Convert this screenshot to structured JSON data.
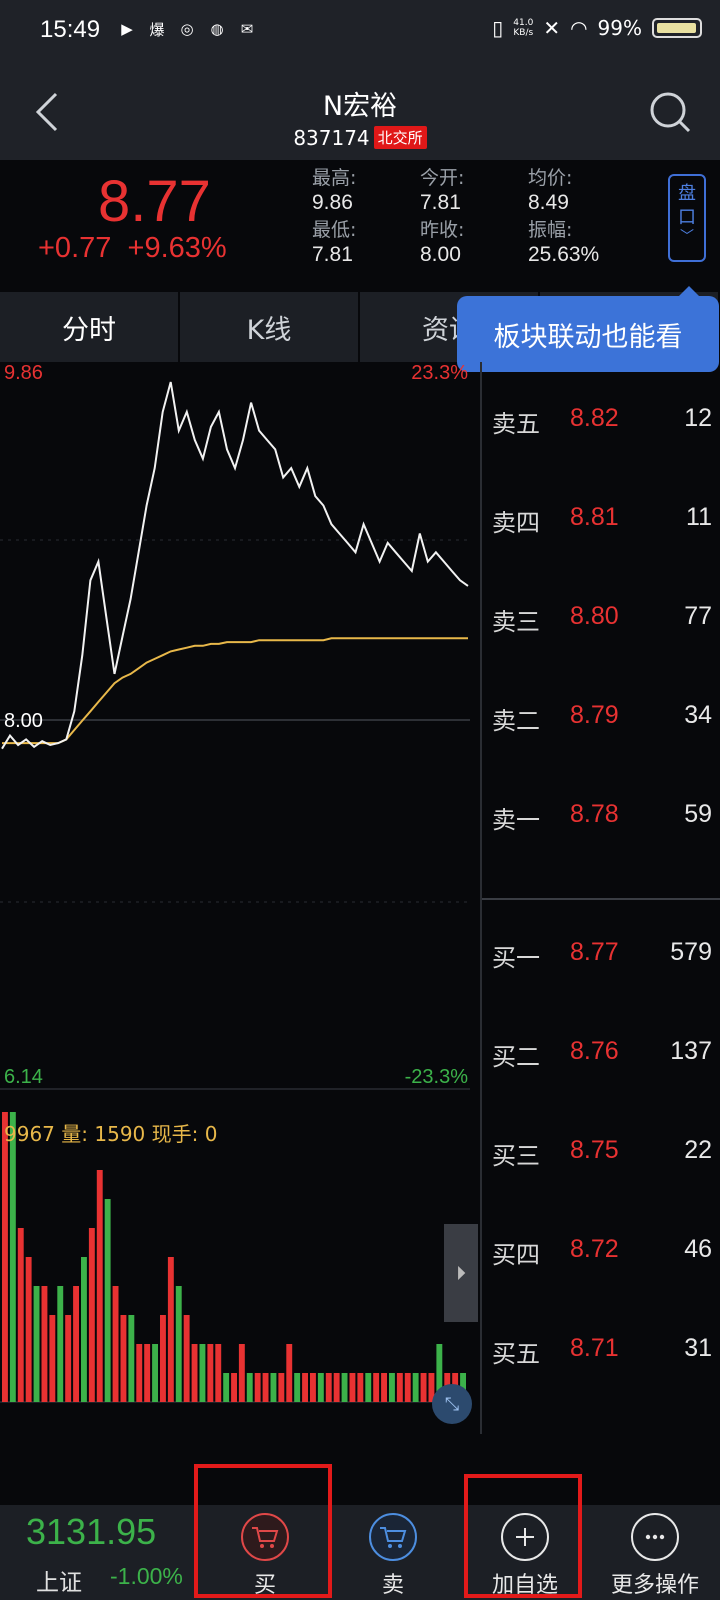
{
  "status_bar": {
    "time": "15:49",
    "net_speed_top": "41.0",
    "net_speed_bottom": "KB/s",
    "battery": "99%"
  },
  "header": {
    "title": "N宏裕",
    "code": "837174",
    "exchange": "北交所"
  },
  "quote": {
    "price": "8.77",
    "change": "+0.77",
    "change_pct": "+9.63%",
    "stats": [
      {
        "label": "最高:",
        "value": "9.86"
      },
      {
        "label": "今开:",
        "value": "7.81"
      },
      {
        "label": "均价:",
        "value": "8.49"
      },
      {
        "label": "最低:",
        "value": "7.81"
      },
      {
        "label": "昨收:",
        "value": "8.00"
      },
      {
        "label": "振幅:",
        "value": "25.63%"
      }
    ],
    "pankou_label": "盘口"
  },
  "tabs": [
    "分时",
    "K线",
    "资讯",
    ""
  ],
  "tooltip": "板块联动也能看",
  "chart": {
    "top_price": "9.86",
    "top_pct": "23.3%",
    "mid_price": "8.00",
    "bottom_price": "6.14",
    "bottom_pct": "-23.3%",
    "volume_header_left": "9967",
    "volume_label": "量:",
    "volume_value": "1590",
    "current_hand_label": "现手:",
    "current_hand_value": "0"
  },
  "chart_data": {
    "type": "line",
    "title": "",
    "ylim": [
      6.14,
      9.86
    ],
    "series": [
      {
        "name": "",
        "values": [
          7.9,
          7.97,
          7.92,
          7.95,
          7.91,
          7.94,
          7.92,
          7.93,
          7.95,
          8.1,
          8.4,
          8.8,
          8.9,
          8.6,
          8.3,
          8.5,
          8.7,
          8.95,
          9.2,
          9.4,
          9.7,
          9.86,
          9.6,
          9.7,
          9.55,
          9.45,
          9.62,
          9.7,
          9.5,
          9.4,
          9.55,
          9.75,
          9.6,
          9.55,
          9.5,
          9.35,
          9.4,
          9.3,
          9.4,
          9.25,
          9.2,
          9.1,
          9.05,
          9.0,
          8.95,
          9.1,
          9.0,
          8.9,
          9.0,
          8.95,
          8.9,
          8.85,
          9.05,
          8.9,
          8.95,
          8.9,
          8.85,
          8.8,
          8.77
        ]
      },
      {
        "name": "",
        "values": [
          7.93,
          7.93,
          7.93,
          7.93,
          7.93,
          7.93,
          7.93,
          7.93,
          7.95,
          8.0,
          8.05,
          8.1,
          8.15,
          8.2,
          8.25,
          8.28,
          8.3,
          8.33,
          8.36,
          8.38,
          8.4,
          8.42,
          8.43,
          8.44,
          8.45,
          8.45,
          8.46,
          8.46,
          8.47,
          8.47,
          8.47,
          8.47,
          8.48,
          8.48,
          8.48,
          8.48,
          8.48,
          8.48,
          8.48,
          8.48,
          8.48,
          8.49,
          8.49,
          8.49,
          8.49,
          8.49,
          8.49,
          8.49,
          8.49,
          8.49,
          8.49,
          8.49,
          8.49,
          8.49,
          8.49,
          8.49,
          8.49,
          8.49,
          8.49
        ]
      }
    ],
    "volume": [
      10,
      10,
      6,
      5,
      4,
      4,
      3,
      4,
      3,
      4,
      5,
      6,
      8,
      7,
      4,
      3,
      3,
      2,
      2,
      2,
      3,
      5,
      4,
      3,
      2,
      2,
      2,
      2,
      1,
      1,
      2,
      1,
      1,
      1,
      1,
      1,
      2,
      1,
      1,
      1,
      1,
      1,
      1,
      1,
      1,
      1,
      1,
      1,
      1,
      1,
      1,
      1,
      1,
      1,
      1,
      2,
      1,
      1,
      1
    ]
  },
  "orderbook": {
    "asks": [
      {
        "label": "卖五",
        "price": "8.82",
        "vol": "12"
      },
      {
        "label": "卖四",
        "price": "8.81",
        "vol": "11"
      },
      {
        "label": "卖三",
        "price": "8.80",
        "vol": "77"
      },
      {
        "label": "卖二",
        "price": "8.79",
        "vol": "34"
      },
      {
        "label": "卖一",
        "price": "8.78",
        "vol": "59"
      }
    ],
    "bids": [
      {
        "label": "买一",
        "price": "8.77",
        "vol": "579"
      },
      {
        "label": "买二",
        "price": "8.76",
        "vol": "137"
      },
      {
        "label": "买三",
        "price": "8.75",
        "vol": "22"
      },
      {
        "label": "买四",
        "price": "8.72",
        "vol": "46"
      },
      {
        "label": "买五",
        "price": "8.71",
        "vol": "31"
      }
    ]
  },
  "bottom": {
    "index_value": "3131.95",
    "index_name": "上证",
    "index_change": "-1.00%",
    "buy": "买",
    "sell": "卖",
    "add_watch": "加自选",
    "more": "更多操作"
  },
  "colors": {
    "up": "#e83232",
    "down": "#3cb24a",
    "accent": "#3c73d8",
    "avg_line": "#e8b84a",
    "highlight": "#e21a1a"
  }
}
